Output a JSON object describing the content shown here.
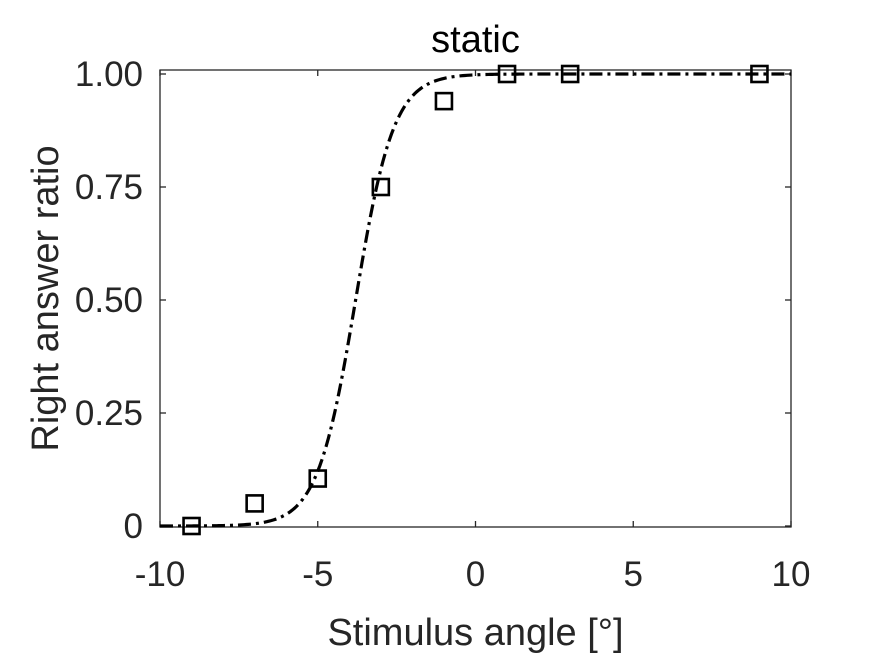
{
  "chart_data": {
    "type": "scatter",
    "title": "static",
    "xlabel": "Stimulus angle [°]",
    "ylabel": "Right answer ratio",
    "xlim": [
      -10,
      10
    ],
    "ylim": [
      0,
      1
    ],
    "x_ticks": [
      -10,
      -5,
      0,
      5,
      10
    ],
    "x_tick_labels": [
      "-10",
      "-5",
      "0",
      "5",
      "10"
    ],
    "y_ticks": [
      0,
      0.25,
      0.5,
      0.75,
      1.0
    ],
    "y_tick_labels": [
      "0",
      "0.25",
      "0.50",
      "0.75",
      "1.00"
    ],
    "grid": false,
    "box": true,
    "series": [
      {
        "kind": "markers",
        "marker": "square",
        "color": "#000000",
        "x": [
          -9,
          -7,
          -5,
          -3,
          -1,
          1,
          3,
          9
        ],
        "y": [
          0,
          0.05,
          0.105,
          0.75,
          0.94,
          1.0,
          1.0,
          1.0
        ]
      },
      {
        "kind": "fit-curve",
        "line_style": "dash-dot",
        "color": "#000000",
        "function": "logistic",
        "midpoint": -3.8,
        "slope": 1.65,
        "x_range": [
          -10,
          10
        ]
      }
    ]
  }
}
